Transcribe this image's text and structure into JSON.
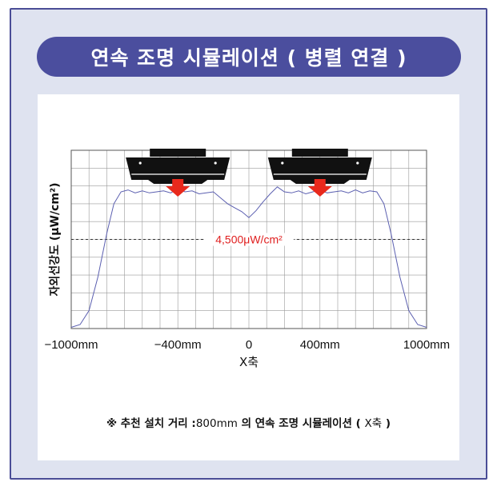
{
  "title": "연속 조명 시뮬레이션 ( 병렬 연결 )",
  "note": {
    "prefix": "※ 추천 설치 거리 :",
    "distance": "800mm",
    "middle": " 의 연속 조명 시뮬레이션 ( ",
    "axis": "X축",
    "suffix": " )"
  },
  "colors": {
    "frame_bg": "#dfe3f0",
    "banner": "#4b4e9e",
    "line": "#5b5fb0",
    "threshold": "#e02020",
    "arrow": "#e8291c"
  },
  "chart_data": {
    "type": "line",
    "ylabel": "자외선강도 (μW/cm²)",
    "xlabel": "X축",
    "x_ticks": [
      "−1000mm",
      "−400mm",
      "0",
      "400mm",
      "1000mm"
    ],
    "x_tick_values": [
      -1000,
      -400,
      0,
      400,
      1000
    ],
    "xlim": [
      -1000,
      1000
    ],
    "ylim": [
      0,
      9000
    ],
    "grid": true,
    "annotation": {
      "label": "4,500μW/cm²",
      "value": 4500
    },
    "lamps": [
      {
        "name": "lamp-left",
        "x": -400,
        "icon": "uv-lamp-icon"
      },
      {
        "name": "lamp-right",
        "x": 400,
        "icon": "uv-lamp-icon"
      }
    ],
    "series": [
      {
        "x": [
          -1000,
          -950,
          -900,
          -850,
          -800,
          -760,
          -720,
          -680,
          -640,
          -600,
          -560,
          -520,
          -480,
          -440,
          -400,
          -360,
          -320,
          -280,
          -240,
          -200,
          -160,
          -120,
          -80,
          -40,
          0,
          40,
          80,
          120,
          160,
          200,
          240,
          280,
          320,
          360,
          400,
          440,
          480,
          520,
          560,
          600,
          640,
          680,
          720,
          760,
          800,
          850,
          900,
          950,
          1000
        ],
        "y": [
          60,
          200,
          900,
          2600,
          4800,
          6300,
          6900,
          7000,
          6850,
          6950,
          6850,
          6900,
          6950,
          6850,
          7050,
          6900,
          6950,
          6800,
          6850,
          6900,
          6600,
          6300,
          6100,
          5900,
          5600,
          5950,
          6400,
          6800,
          7150,
          6900,
          6850,
          6950,
          6800,
          6900,
          7000,
          6850,
          6900,
          6950,
          6850,
          7000,
          6850,
          6950,
          6900,
          6300,
          4800,
          2600,
          900,
          200,
          60
        ]
      }
    ]
  }
}
